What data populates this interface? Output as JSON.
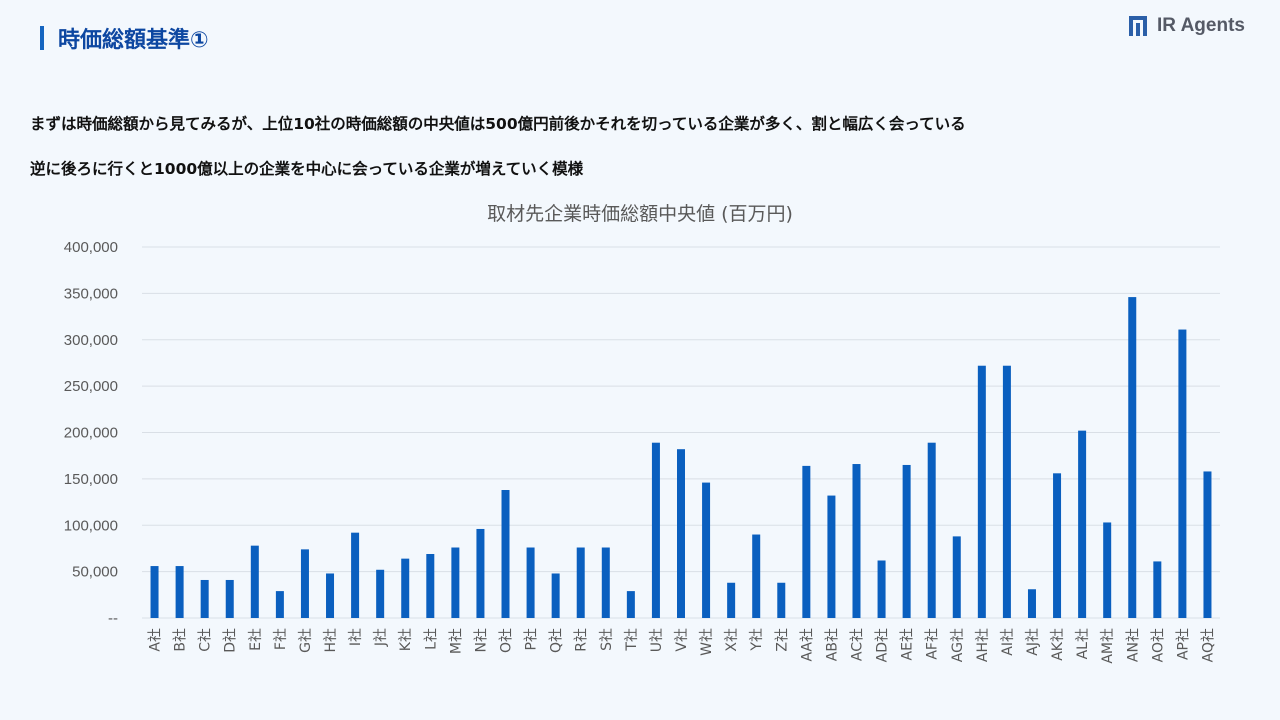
{
  "header": {
    "title": "時価総額基準①",
    "logo_text": "IR Agents"
  },
  "description": [
    "まずは時価総額から見てみるが、上位10社の時価総額の中央値は500億円前後かそれを切っている企業が多く、割と幅広く会っている",
    "逆に後ろに行くと1000億以上の企業を中心に会っている企業が増えていく模様"
  ],
  "colors": {
    "accent": "#1565c0",
    "bar": "#0a5fbf",
    "title": "#0d47a1"
  },
  "chart_data": {
    "type": "bar",
    "title": "取材先企業時価総額中央値 (百万円)",
    "xlabel": "",
    "ylabel": "",
    "ylim": [
      0,
      400000
    ],
    "yticks": [
      0,
      50000,
      100000,
      150000,
      200000,
      250000,
      300000,
      350000,
      400000
    ],
    "ytick_labels": [
      "--",
      "50,000",
      "100,000",
      "150,000",
      "200,000",
      "250,000",
      "300,000",
      "350,000",
      "400,000"
    ],
    "grid": true,
    "categories": [
      "A社",
      "B社",
      "C社",
      "D社",
      "E社",
      "F社",
      "G社",
      "H社",
      "I社",
      "J社",
      "K社",
      "L社",
      "M社",
      "N社",
      "O社",
      "P社",
      "Q社",
      "R社",
      "S社",
      "T社",
      "U社",
      "V社",
      "W社",
      "X社",
      "Y社",
      "Z社",
      "AA社",
      "AB社",
      "AC社",
      "AD社",
      "AE社",
      "AF社",
      "AG社",
      "AH社",
      "AI社",
      "AJ社",
      "AK社",
      "AL社",
      "AM社",
      "AN社",
      "AO社",
      "AP社",
      "AQ社"
    ],
    "values": [
      56000,
      56000,
      41000,
      41000,
      78000,
      29000,
      74000,
      48000,
      92000,
      52000,
      64000,
      69000,
      76000,
      96000,
      138000,
      76000,
      48000,
      76000,
      76000,
      29000,
      189000,
      182000,
      146000,
      38000,
      90000,
      38000,
      164000,
      132000,
      166000,
      62000,
      165000,
      189000,
      88000,
      272000,
      272000,
      31000,
      156000,
      202000,
      103000,
      346000,
      61000,
      311000,
      158000
    ]
  }
}
